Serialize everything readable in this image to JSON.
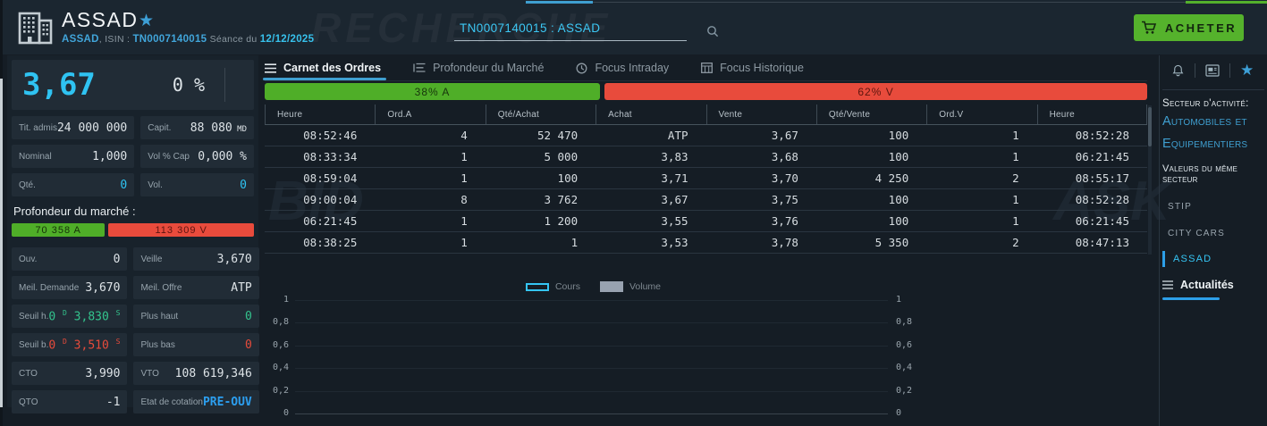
{
  "header": {
    "watermark": "RECHERCHE",
    "title": "ASSAD",
    "subtitle": {
      "name": "ASSAD",
      "isin_label": ", ISIN : ",
      "isin": "TN0007140015",
      "seance_label": " Séance du ",
      "date": "12/12/2025"
    },
    "search": {
      "value": "TN0007140015 : ASSAD"
    },
    "buy_button": {
      "label": "ACHETER"
    }
  },
  "quote_panel": {
    "price": "3,67",
    "change": "0 %",
    "stats": [
      {
        "label": "Tit. admis",
        "value": "24 000 000"
      },
      {
        "label": "Capit.",
        "value": "88 080",
        "unit": "MD"
      },
      {
        "label": "Nominal",
        "value": "1,000"
      },
      {
        "label": "Vol % Cap",
        "value": "0,000 %"
      },
      {
        "label": "Qté.",
        "value": "0",
        "color": "cyan"
      },
      {
        "label": "Vol.",
        "value": "0",
        "color": "cyan"
      },
      {
        "label": "Ouv.",
        "value": "0"
      },
      {
        "label": "Veille",
        "value": "3,670"
      },
      {
        "label": "Meil. Demande",
        "value": "3,670"
      },
      {
        "label": "Meil. Offre",
        "value": "ATP"
      },
      {
        "label": "Seuil h.",
        "pre": "0",
        "sup_pre": "D",
        "value": "3,830",
        "sup_post": "S",
        "color": "green"
      },
      {
        "label": "Plus haut",
        "value": "0",
        "color": "green"
      },
      {
        "label": "Seuil b.",
        "pre": "0",
        "sup_pre": "D",
        "value": "3,510",
        "sup_post": "S",
        "color": "red"
      },
      {
        "label": "Plus bas",
        "value": "0",
        "color": "red"
      },
      {
        "label": "CTO",
        "value": "3,990"
      },
      {
        "label": "VTO",
        "value": "108 619,346"
      },
      {
        "label": "QTO",
        "value": "-1"
      },
      {
        "label": "Etat de cotation",
        "value": "PRE-OUV",
        "color": "blue"
      }
    ],
    "depth": {
      "label": "Profondeur du marché :",
      "buy_label": "70 358  A",
      "sell_label": "113 309  V",
      "buy_pct": 38.5
    }
  },
  "tabs": [
    {
      "label": "Carnet des Ordres",
      "active": true
    },
    {
      "label": "Profondeur du Marché",
      "active": false
    },
    {
      "label": "Focus Intraday",
      "active": false
    },
    {
      "label": "Focus Historique",
      "active": false
    }
  ],
  "orderbook": {
    "ratio_bar": {
      "buy_label": "38%  A",
      "sell_label": "62%  V",
      "buy_pct": 38
    },
    "watermark_bid": "BID",
    "watermark_ask": "ASK",
    "columns": [
      "Heure",
      "Ord.A",
      "Qté/Achat",
      "Achat",
      "Vente",
      "Qté/Vente",
      "Ord.V",
      "Heure"
    ],
    "rows": [
      [
        "08:52:46",
        "4",
        "52 470",
        "ATP",
        "3,67",
        "100",
        "1",
        "08:52:28"
      ],
      [
        "08:33:34",
        "1",
        "5 000",
        "3,83",
        "3,68",
        "100",
        "1",
        "06:21:45"
      ],
      [
        "08:59:04",
        "1",
        "100",
        "3,71",
        "3,70",
        "4 250",
        "2",
        "08:55:17"
      ],
      [
        "09:00:04",
        "8",
        "3 762",
        "3,67",
        "3,75",
        "100",
        "1",
        "08:52:28"
      ],
      [
        "06:21:45",
        "1",
        "1 200",
        "3,55",
        "3,76",
        "100",
        "1",
        "06:21:45"
      ],
      [
        "08:38:25",
        "1",
        "1",
        "3,53",
        "3,78",
        "5 350",
        "2",
        "08:47:13"
      ]
    ]
  },
  "chart": {
    "legend": [
      {
        "label": "Cours",
        "type": "line",
        "color": "#35c5f4"
      },
      {
        "label": "Volume",
        "type": "bar",
        "color": "#98a2b0"
      }
    ],
    "y_ticks": [
      "1",
      "0,8",
      "0,6",
      "0,4",
      "0,2",
      "0"
    ],
    "chart_data": {
      "type": "line",
      "x": [],
      "series": [
        {
          "name": "Cours",
          "values": []
        },
        {
          "name": "Volume",
          "values": []
        }
      ],
      "ylim": [
        0,
        1
      ],
      "grid": true,
      "legend_position": "top-center"
    }
  },
  "sidebar": {
    "sector_label": "Secteur d'activité:",
    "sector_value": "Automobiles et Equipementiers",
    "peers_label": "Valeurs du même secteur",
    "peers": [
      {
        "label": "STIP",
        "active": false
      },
      {
        "label": "CITY CARS",
        "active": false
      },
      {
        "label": "ASSAD",
        "active": true
      }
    ],
    "news_tab": "Actualités"
  }
}
